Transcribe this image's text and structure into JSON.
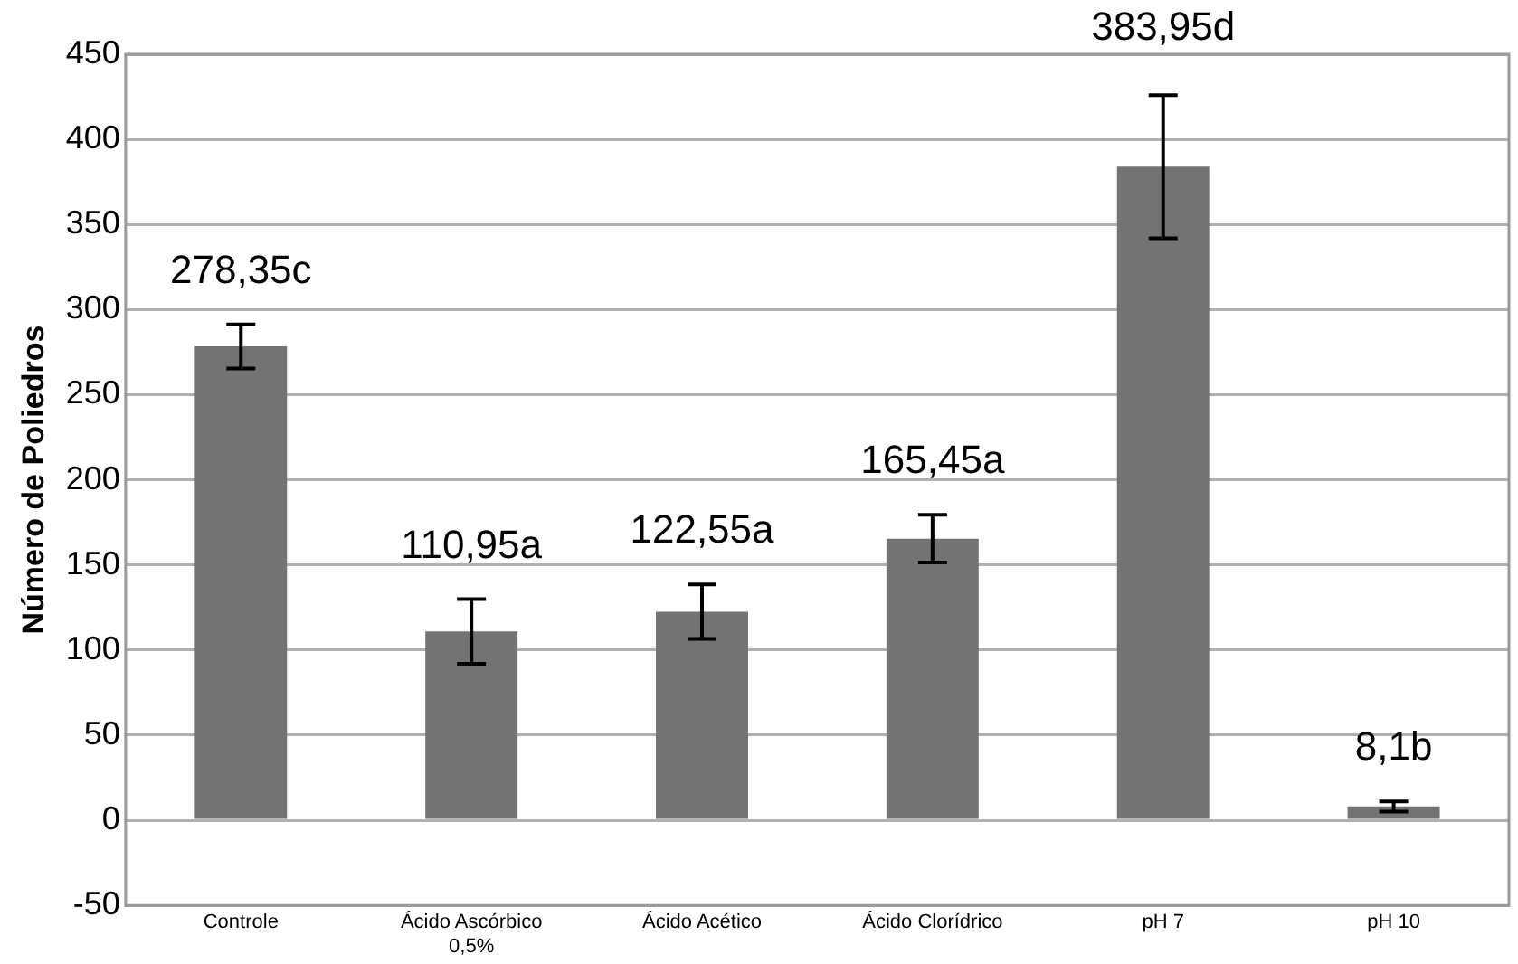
{
  "chart_data": {
    "type": "bar",
    "ylabel": "Número de Poliedros",
    "categories": [
      "Controle",
      "Ácido Ascórbico 0,5%",
      "Ácido Acético",
      "Ácido Clorídrico",
      "pH 7",
      "pH 10"
    ],
    "values": [
      278.35,
      110.95,
      122.55,
      165.45,
      383.95,
      8.1
    ],
    "errors": [
      13,
      19,
      16,
      14,
      42,
      3
    ],
    "value_labels": [
      "278,35c",
      "110,95a",
      "122,55a",
      "165,45a",
      "383,95d",
      "8,1b"
    ],
    "color": "#737373",
    "ylim": [
      -50,
      450
    ],
    "yticks": [
      -50,
      0,
      50,
      100,
      150,
      200,
      250,
      300,
      350,
      400,
      450
    ],
    "grid": "y",
    "legend": false
  }
}
